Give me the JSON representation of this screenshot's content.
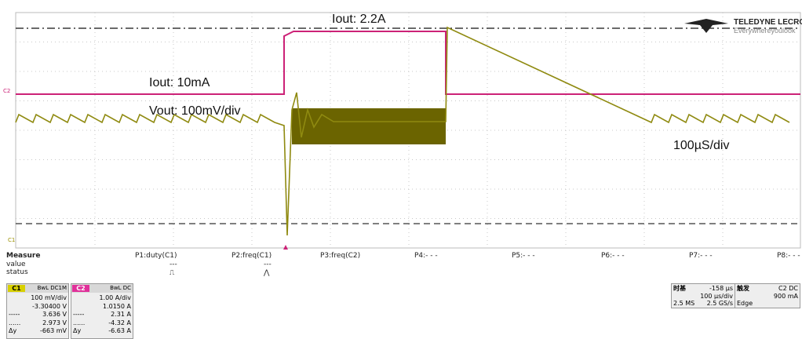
{
  "logo": {
    "brand": "TELEDYNE LECROY",
    "tagline": "Everywhereyoulook"
  },
  "annotations": {
    "iout_high": "Iout: 2.2A",
    "iout_low": "Iout: 10mA",
    "vout": "Vout: 100mV/div",
    "timebase": "100µS/div"
  },
  "markers": {
    "c2": "C2",
    "c1": "C1"
  },
  "measure": {
    "label": "Measure",
    "rows": [
      "value",
      "status"
    ],
    "params": [
      "P1:duty(C1)",
      "P2:freq(C1)",
      "P3:freq(C2)",
      "P4:- - -",
      "P5:- - -",
      "P6:- - -",
      "P7:- - -",
      "P8:- - -"
    ],
    "values": [
      "---",
      "---"
    ],
    "status": [
      "⎍",
      "⋀"
    ]
  },
  "channels": [
    {
      "name": "C1",
      "coupling": "BwL DC1M",
      "lines": [
        "100 mV/div",
        "-3.30400 V",
        "3.636 V",
        "2.973 V",
        "-663 mV"
      ],
      "cursor_labels": [
        "-----",
        "......",
        "Δy"
      ]
    },
    {
      "name": "C2",
      "coupling": "BwL DC",
      "lines": [
        "1.00 A/div",
        "1.0150 A",
        "2.31 A",
        "-4.32 A",
        "-6.63 A"
      ],
      "cursor_labels": [
        "-----",
        "......",
        "Δy"
      ]
    }
  ],
  "timebase": {
    "label": "时基",
    "delay": "-158 µs",
    "per_div": "100 µs/div",
    "samples": "2.5 MS",
    "rate": "2.5 GS/s"
  },
  "trigger": {
    "label": "触发",
    "source": "C2 DC",
    "level": "900 mA",
    "mode": "Edge"
  }
}
